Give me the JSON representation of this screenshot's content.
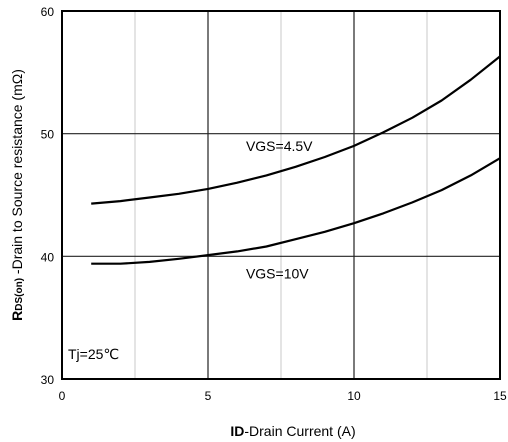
{
  "chart_data": {
    "type": "line",
    "x_axis": {
      "label_bold": "ID",
      "label_rest": "-Drain Current (A)",
      "ticks": [
        0,
        5,
        10,
        15
      ],
      "range": [
        0,
        15
      ]
    },
    "y_axis": {
      "label_bold": "R",
      "label_sub": "DS(on)",
      "label_rest": " -Drain to Source resistance (mΩ)",
      "ticks": [
        30,
        40,
        50,
        60
      ],
      "range": [
        30,
        60
      ]
    },
    "grid": true,
    "annotation": "Tj=25℃",
    "series": [
      {
        "name": "VGS=4.5V",
        "color": "#000000",
        "points": [
          [
            1,
            44.3
          ],
          [
            2,
            44.5
          ],
          [
            3,
            44.8
          ],
          [
            4,
            45.1
          ],
          [
            5,
            45.5
          ],
          [
            6,
            46.0
          ],
          [
            7,
            46.6
          ],
          [
            8,
            47.3
          ],
          [
            9,
            48.1
          ],
          [
            10,
            49.0
          ],
          [
            11,
            50.1
          ],
          [
            12,
            51.3
          ],
          [
            13,
            52.7
          ],
          [
            14,
            54.4
          ],
          [
            15,
            56.3
          ]
        ]
      },
      {
        "name": "VGS=10V",
        "color": "#000000",
        "points": [
          [
            1,
            39.4
          ],
          [
            2,
            39.4
          ],
          [
            3,
            39.55
          ],
          [
            4,
            39.8
          ],
          [
            5,
            40.1
          ],
          [
            6,
            40.4
          ],
          [
            7,
            40.8
          ],
          [
            8,
            41.4
          ],
          [
            9,
            42.0
          ],
          [
            10,
            42.7
          ],
          [
            11,
            43.5
          ],
          [
            12,
            44.4
          ],
          [
            13,
            45.4
          ],
          [
            14,
            46.6
          ],
          [
            15,
            48.0
          ]
        ]
      }
    ]
  }
}
